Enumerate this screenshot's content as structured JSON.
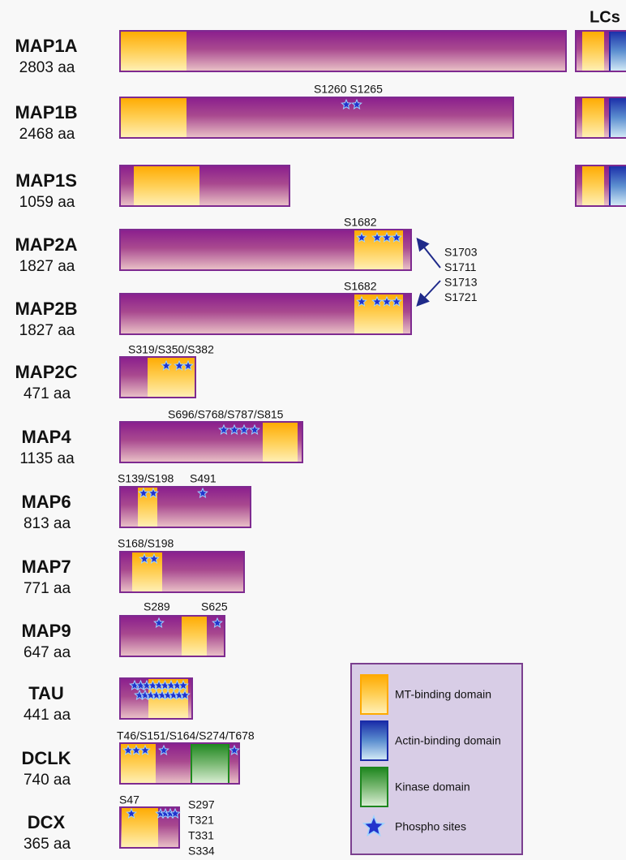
{
  "lcs_label": "LCs",
  "proteins": [
    {
      "name": "MAP1A",
      "length": "2803 aa"
    },
    {
      "name": "MAP1B",
      "length": "2468 aa",
      "sites": [
        "S1260 S1265"
      ]
    },
    {
      "name": "MAP1S",
      "length": "1059 aa"
    },
    {
      "name": "MAP2A",
      "length": "1827 aa",
      "sites": [
        "S1682"
      ]
    },
    {
      "name": "MAP2B",
      "length": "1827 aa",
      "sites": [
        "S1682"
      ]
    },
    {
      "name": "MAP2C",
      "length": "471 aa",
      "sites": [
        "S319/S350/S382"
      ]
    },
    {
      "name": "MAP4",
      "length": "1135 aa",
      "sites": [
        "S696/S768/S787/S815"
      ]
    },
    {
      "name": "MAP6",
      "length": "813 aa",
      "sites": [
        "S139/S198",
        "S491"
      ]
    },
    {
      "name": "MAP7",
      "length": "771 aa",
      "sites": [
        "S168/S198"
      ]
    },
    {
      "name": "MAP9",
      "length": "647 aa",
      "sites": [
        "S289",
        "S625"
      ]
    },
    {
      "name": "TAU",
      "length": "441 aa"
    },
    {
      "name": "DCLK",
      "length": "740 aa",
      "sites": [
        "T46/S151/S164/S274/T678"
      ]
    },
    {
      "name": "DCX",
      "length": "365 aa",
      "sites": [
        "S47"
      ],
      "side_sites": [
        "S297",
        "T321",
        "T331",
        "S334"
      ]
    }
  ],
  "arrow_sites": [
    "S1703",
    "S1711",
    "S1713",
    "S1721"
  ],
  "legend": [
    {
      "label": "MT-binding domain"
    },
    {
      "label": "Actin-binding domain"
    },
    {
      "label": "Kinase domain"
    },
    {
      "label": "Phospho sites"
    }
  ]
}
